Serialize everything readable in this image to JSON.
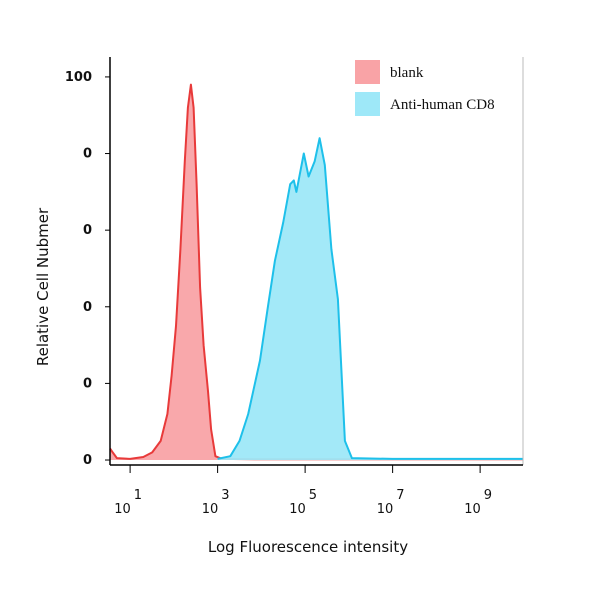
{
  "chart_data": {
    "type": "histogram-overlay",
    "xlabel": "Log Fluorescence intensity",
    "ylabel": "Relative Cell Nubmer",
    "xscale": "log",
    "xlim": [
      3.47,
      9550000000
    ],
    "ylim": [
      -1.3,
      105.2
    ],
    "xticks": [
      {
        "value": 10,
        "label": "10",
        "sup": "1"
      },
      {
        "value": 1000,
        "label": "10",
        "sup": "3"
      },
      {
        "value": 100000,
        "label": "10",
        "sup": "5"
      },
      {
        "value": 10000000,
        "label": "10",
        "sup": "7"
      },
      {
        "value": 1000000000,
        "label": "10",
        "sup": "9"
      }
    ],
    "yticks": [
      {
        "value": 0,
        "label": "0"
      },
      {
        "value": 20,
        "label": "0"
      },
      {
        "value": 40,
        "label": "0"
      },
      {
        "value": 60,
        "label": "0"
      },
      {
        "value": 80,
        "label": "0"
      },
      100
    ],
    "legend": "upper right",
    "series": [
      {
        "name": "blank",
        "color": "#e83a3a",
        "fill": "#f9a3a6",
        "x": [
          3.47,
          4,
          5,
          10,
          20,
          32,
          50,
          71,
          89,
          112,
          141,
          178,
          209,
          245,
          282,
          331,
          398,
          479,
          603,
          708,
          891,
          1259,
          10000,
          9550000000
        ],
        "values": [
          3,
          2,
          0.5,
          0.3,
          0.8,
          2,
          5,
          12,
          22,
          35,
          55,
          78,
          92,
          98,
          92,
          72,
          45,
          30,
          18,
          8,
          1,
          0.3,
          0.2,
          0.2
        ]
      },
      {
        "name": "Anti-human CD8",
        "color": "#1ec0ea",
        "fill": "#9ee8f8",
        "x": [
          1000,
          1950,
          3160,
          5010,
          9330,
          14100,
          20400,
          31600,
          45700,
          55000,
          63100,
          93300,
          120000,
          166000,
          214000,
          282000,
          398000,
          562000,
          813000,
          1175000,
          10000000,
          9550000000
        ],
        "values": [
          0.3,
          1,
          5,
          12,
          26,
          40,
          52,
          62,
          72,
          73,
          70,
          80,
          74,
          78,
          84,
          77,
          55,
          42,
          5,
          0.5,
          0.3,
          0.3
        ]
      }
    ]
  }
}
